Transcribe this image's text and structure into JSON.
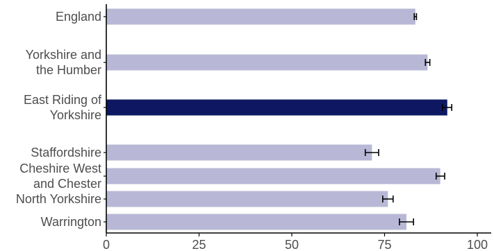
{
  "chart_data": {
    "type": "bar",
    "orientation": "horizontal",
    "title": "",
    "xlabel": "",
    "ylabel": "",
    "xlim": [
      0,
      100
    ],
    "x_ticks": [
      0,
      25,
      50,
      75,
      100
    ],
    "x_tick_labels": [
      "0",
      "25",
      "50",
      "75",
      "100"
    ],
    "grid": false,
    "legend": "none",
    "categories": [
      {
        "lines": [
          "England"
        ],
        "value": 83.3,
        "err_low": 83.0,
        "err_high": 83.6,
        "highlight": false
      },
      {
        "lines": [
          "Yorkshire and",
          "the Humber"
        ],
        "value": 86.6,
        "err_low": 86.0,
        "err_high": 87.2,
        "highlight": false
      },
      {
        "lines": [
          "East Riding of",
          "Yorkshire"
        ],
        "value": 91.9,
        "err_low": 90.6,
        "err_high": 93.1,
        "highlight": true
      },
      {
        "lines": [
          "Staffordshire"
        ],
        "value": 71.6,
        "err_low": 69.8,
        "err_high": 73.4,
        "highlight": false
      },
      {
        "lines": [
          "Cheshire West",
          "and Chester"
        ],
        "value": 90.0,
        "err_low": 88.9,
        "err_high": 91.2,
        "highlight": false
      },
      {
        "lines": [
          "North Yorkshire"
        ],
        "value": 75.9,
        "err_low": 74.5,
        "err_high": 77.3,
        "highlight": false
      },
      {
        "lines": [
          "Warrington"
        ],
        "value": 80.9,
        "err_low": 79.0,
        "err_high": 82.8,
        "highlight": false
      }
    ],
    "colors": {
      "bar": "#b8b8d6",
      "highlight": "#0e1862",
      "error_bar": "#000000",
      "axis": "#000000",
      "label": "#4d4d4d"
    }
  }
}
